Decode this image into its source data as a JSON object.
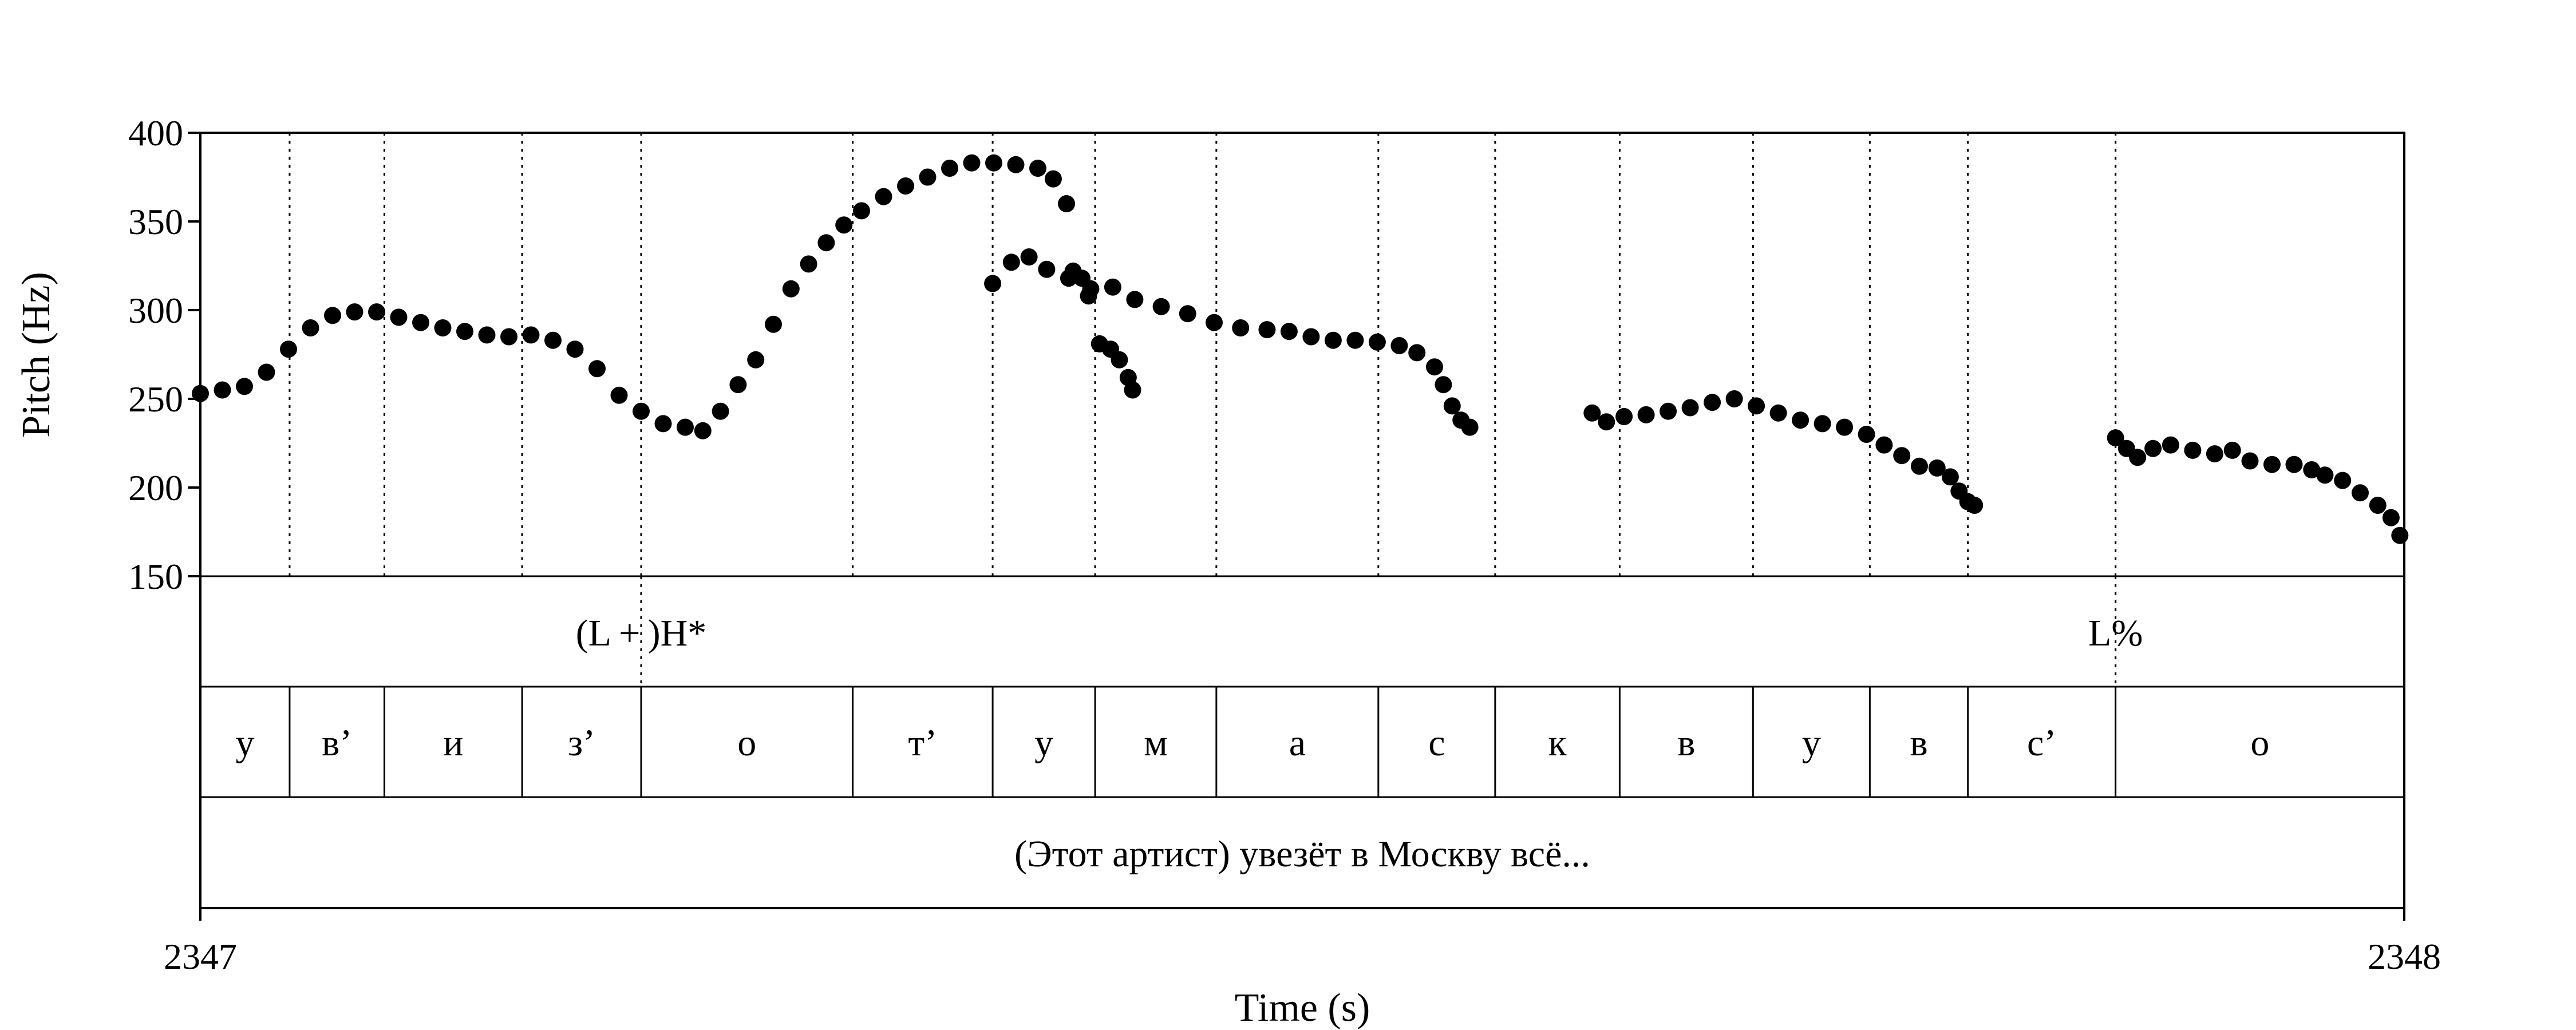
{
  "chart_data": {
    "type": "scatter",
    "xlabel": "Time (s)",
    "ylabel": "Pitch (Hz)",
    "xlim": [
      2347,
      2348
    ],
    "ylim": [
      150,
      400
    ],
    "x_tick_labels": [
      "2347",
      "2348"
    ],
    "y_tick_labels": [
      "400",
      "350",
      "300",
      "250",
      "200",
      "150"
    ],
    "grid": "vertical dotted lines at segment boundaries",
    "segment_boundaries": [
      2347.0,
      2347.0405,
      2347.0835,
      2347.146,
      2347.2,
      2347.296,
      2347.3595,
      2347.406,
      2347.461,
      2347.5345,
      2347.5875,
      2347.644,
      2347.7045,
      2347.7575,
      2347.802,
      2347.869,
      2348.0
    ],
    "series": [
      {
        "points": [
          [
            2347.0,
            253
          ],
          [
            2347.01,
            255
          ],
          [
            2347.02,
            257
          ],
          [
            2347.03,
            265
          ],
          [
            2347.04,
            278
          ],
          [
            2347.05,
            290
          ],
          [
            2347.06,
            297
          ],
          [
            2347.07,
            299
          ],
          [
            2347.08,
            299
          ],
          [
            2347.09,
            296
          ],
          [
            2347.1,
            293
          ],
          [
            2347.11,
            290
          ],
          [
            2347.12,
            288
          ],
          [
            2347.13,
            286
          ],
          [
            2347.14,
            285
          ],
          [
            2347.15,
            286
          ],
          [
            2347.16,
            283
          ],
          [
            2347.17,
            278
          ],
          [
            2347.18,
            267
          ],
          [
            2347.19,
            252
          ],
          [
            2347.2,
            243
          ],
          [
            2347.21,
            236
          ],
          [
            2347.22,
            234
          ],
          [
            2347.228,
            232
          ],
          [
            2347.236,
            243
          ],
          [
            2347.244,
            258
          ],
          [
            2347.252,
            272
          ],
          [
            2347.26,
            292
          ],
          [
            2347.268,
            312
          ],
          [
            2347.276,
            326
          ],
          [
            2347.284,
            338
          ],
          [
            2347.292,
            348
          ],
          [
            2347.3,
            356
          ],
          [
            2347.31,
            364
          ],
          [
            2347.32,
            370
          ],
          [
            2347.33,
            375
          ],
          [
            2347.34,
            380
          ],
          [
            2347.35,
            383
          ],
          [
            2347.36,
            383
          ],
          [
            2347.37,
            382
          ],
          [
            2347.38,
            380
          ],
          [
            2347.387,
            374
          ],
          [
            2347.393,
            360
          ],
          [
            2347.396,
            322
          ],
          [
            2347.4,
            318
          ],
          [
            2347.403,
            308
          ],
          [
            2347.408,
            281
          ],
          [
            2347.413,
            278
          ],
          [
            2347.417,
            272
          ],
          [
            2347.421,
            262
          ],
          [
            2347.423,
            255
          ],
          [
            2347.3595,
            315
          ],
          [
            2347.368,
            327
          ],
          [
            2347.376,
            330
          ],
          [
            2347.384,
            323
          ],
          [
            2347.394,
            318
          ],
          [
            2347.404,
            312
          ],
          [
            2347.414,
            313
          ],
          [
            2347.424,
            306
          ],
          [
            2347.436,
            302
          ],
          [
            2347.448,
            298
          ],
          [
            2347.46,
            293
          ],
          [
            2347.472,
            290
          ],
          [
            2347.484,
            289
          ],
          [
            2347.494,
            288
          ],
          [
            2347.504,
            285
          ],
          [
            2347.514,
            283
          ],
          [
            2347.524,
            283
          ],
          [
            2347.534,
            282
          ],
          [
            2347.544,
            280
          ],
          [
            2347.552,
            276
          ],
          [
            2347.56,
            268
          ],
          [
            2347.564,
            258
          ],
          [
            2347.568,
            246
          ],
          [
            2347.572,
            238
          ],
          [
            2347.576,
            234
          ],
          [
            2347.6315,
            242
          ],
          [
            2347.638,
            237
          ],
          [
            2347.646,
            240
          ],
          [
            2347.656,
            241
          ],
          [
            2347.666,
            243
          ],
          [
            2347.676,
            245
          ],
          [
            2347.686,
            248
          ],
          [
            2347.696,
            250
          ],
          [
            2347.706,
            246
          ],
          [
            2347.716,
            242
          ],
          [
            2347.726,
            238
          ],
          [
            2347.736,
            236
          ],
          [
            2347.746,
            234
          ],
          [
            2347.756,
            230
          ],
          [
            2347.764,
            224
          ],
          [
            2347.772,
            218
          ],
          [
            2347.78,
            212
          ],
          [
            2347.788,
            211
          ],
          [
            2347.794,
            206
          ],
          [
            2347.798,
            198
          ],
          [
            2347.802,
            192
          ],
          [
            2347.805,
            190
          ],
          [
            2347.869,
            228
          ],
          [
            2347.874,
            222
          ],
          [
            2347.879,
            217
          ],
          [
            2347.886,
            222
          ],
          [
            2347.894,
            224
          ],
          [
            2347.904,
            221
          ],
          [
            2347.914,
            219
          ],
          [
            2347.922,
            221
          ],
          [
            2347.93,
            215
          ],
          [
            2347.94,
            213
          ],
          [
            2347.95,
            213
          ],
          [
            2347.958,
            210
          ],
          [
            2347.964,
            207
          ],
          [
            2347.972,
            204
          ],
          [
            2347.98,
            197
          ],
          [
            2347.988,
            190
          ],
          [
            2347.994,
            183
          ],
          [
            2347.998,
            173
          ]
        ]
      }
    ]
  },
  "tiers": {
    "tone": {
      "labels": [
        {
          "text": "(L + )H*",
          "at": 2347.2
        },
        {
          "text": "L%",
          "at": 2347.869
        }
      ]
    },
    "segments": [
      "у",
      "в’",
      "и",
      "з’",
      "о",
      "т’",
      "у",
      "м",
      "а",
      "с",
      "к",
      "в",
      "у",
      "в",
      "с’",
      "о"
    ],
    "sentence": "(Этот артист) увезёт в Москву всё..."
  }
}
